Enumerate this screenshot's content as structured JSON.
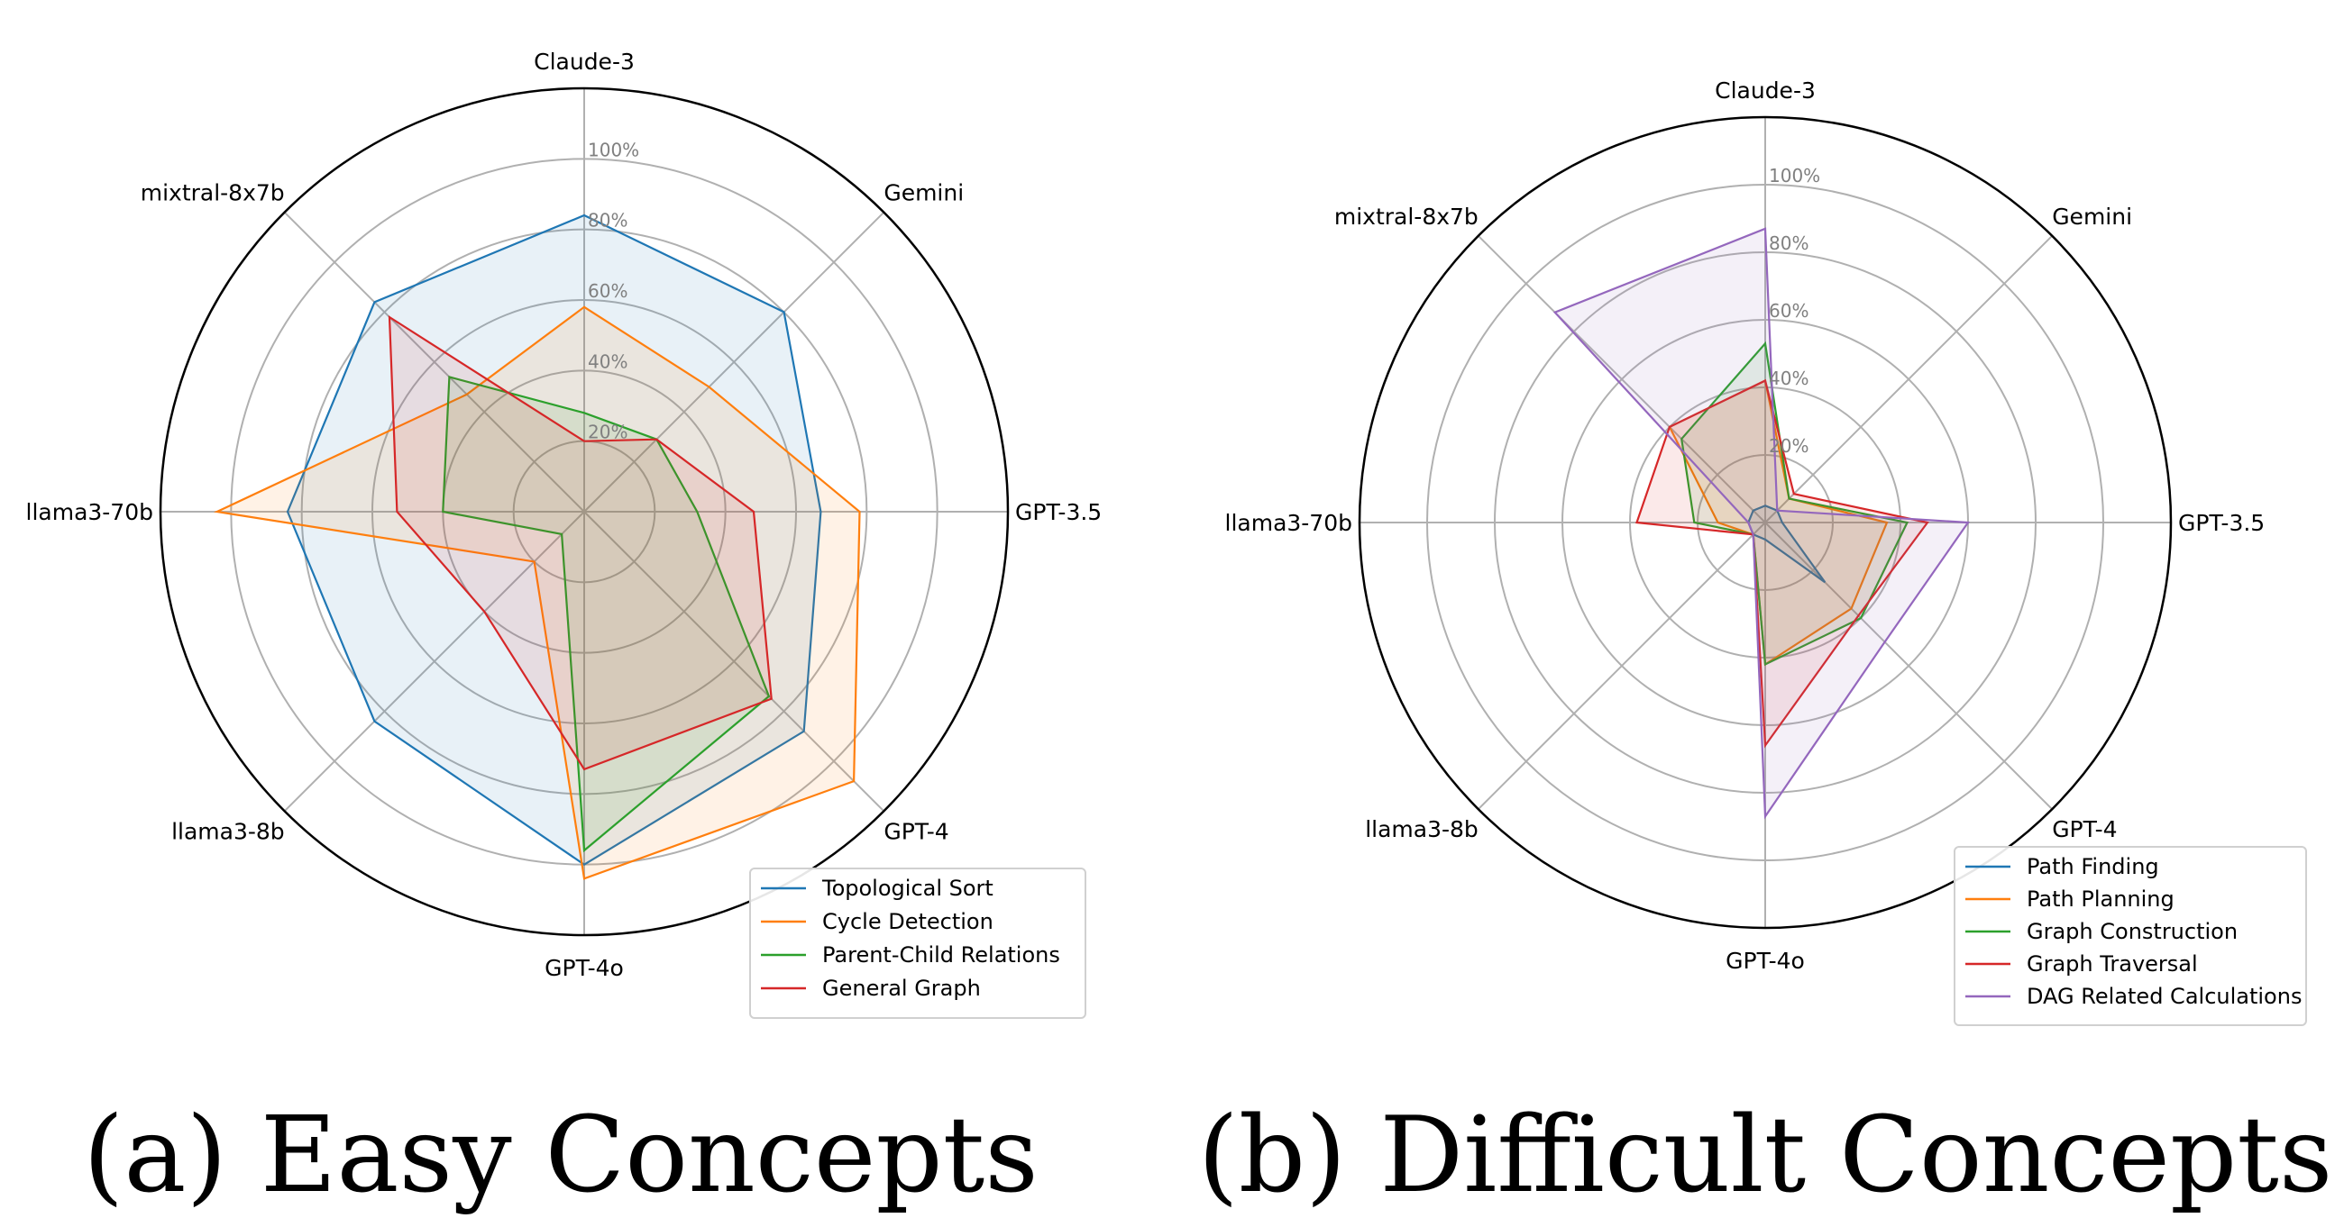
{
  "captions": [
    "(a) Easy Concepts",
    "(b) Difficult Concepts"
  ],
  "chart_data": [
    {
      "type": "radar",
      "title": "",
      "axes": [
        "Claude-3",
        "Gemini",
        "GPT-3.5",
        "GPT-4",
        "GPT-4o",
        "llama3-8b",
        "llama3-70b",
        "mixtral-8x7b"
      ],
      "rlim": [
        0,
        120
      ],
      "radial_ticks": [
        20,
        40,
        60,
        80,
        100
      ],
      "radial_tick_labels": [
        "20%",
        "40%",
        "60%",
        "80%",
        "100%"
      ],
      "grid": true,
      "legend_position": "lower-right",
      "series": [
        {
          "name": "Topological Sort",
          "color": "#1f77b4",
          "values": [
            84,
            80,
            67,
            88,
            100,
            84,
            84,
            84
          ]
        },
        {
          "name": "Cycle Detection",
          "color": "#ff7f0e",
          "values": [
            58,
            50,
            78,
            108,
            104,
            20,
            104,
            47
          ]
        },
        {
          "name": "Parent-Child Relations",
          "color": "#2ca02c",
          "values": [
            28,
            29,
            32,
            74,
            96,
            9,
            40,
            54
          ]
        },
        {
          "name": "General Graph",
          "color": "#d62728",
          "values": [
            20,
            29,
            48,
            75,
            73,
            40,
            53,
            78
          ]
        }
      ]
    },
    {
      "type": "radar",
      "title": "",
      "axes": [
        "Claude-3",
        "Gemini",
        "GPT-3.5",
        "GPT-4",
        "GPT-4o",
        "llama3-8b",
        "llama3-70b",
        "mixtral-8x7b"
      ],
      "rlim": [
        0,
        120
      ],
      "radial_ticks": [
        20,
        40,
        60,
        80,
        100
      ],
      "radial_tick_labels": [
        "20%",
        "40%",
        "60%",
        "80%",
        "100%"
      ],
      "grid": true,
      "legend_position": "lower-right",
      "series": [
        {
          "name": "Path Finding",
          "color": "#1f77b4",
          "values": [
            5,
            5,
            5,
            25,
            5,
            5,
            5,
            5
          ]
        },
        {
          "name": "Path Planning",
          "color": "#ff7f0e",
          "values": [
            42,
            10,
            36,
            36,
            42,
            5,
            14,
            40
          ]
        },
        {
          "name": "Graph Construction",
          "color": "#2ca02c",
          "values": [
            53,
            10,
            42,
            40,
            42,
            5,
            21,
            35
          ]
        },
        {
          "name": "Graph Traversal",
          "color": "#d62728",
          "values": [
            42,
            12,
            48,
            39,
            66,
            5,
            38,
            40
          ]
        },
        {
          "name": "DAG Related Calculations",
          "color": "#9467bd",
          "values": [
            87,
            5,
            60,
            50,
            87,
            5,
            5,
            88
          ]
        }
      ]
    }
  ]
}
